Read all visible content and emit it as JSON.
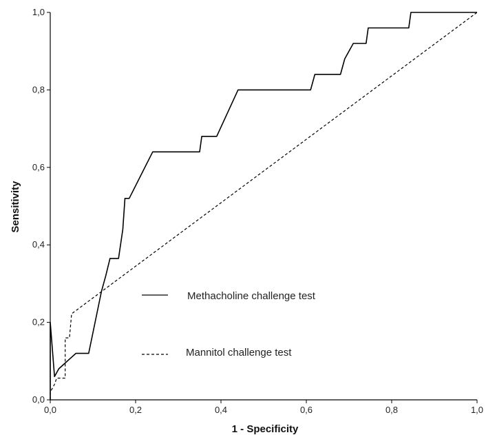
{
  "chart_data": {
    "type": "line",
    "title": "",
    "xlabel": "1 - Specificity",
    "ylabel": "Sensitivity",
    "xlim": [
      0,
      1
    ],
    "ylim": [
      0,
      1
    ],
    "x_ticks": [
      "0,0",
      "0,2",
      "0,4",
      "0,6",
      "0,8",
      "1,0"
    ],
    "y_ticks": [
      "0,0",
      "0,2",
      "0,4",
      "0,6",
      "0,8",
      "1,0"
    ],
    "x_tick_values": [
      0,
      0.2,
      0.4,
      0.6,
      0.8,
      1.0
    ],
    "y_tick_values": [
      0,
      0.2,
      0.4,
      0.6,
      0.8,
      1.0
    ],
    "grid": false,
    "legend_position": "center-right",
    "series": [
      {
        "name": "Methacholine challenge test",
        "style": "solid",
        "color": "#000000",
        "points": [
          [
            0,
            0
          ],
          [
            0.0,
            0.2
          ],
          [
            0.01,
            0.06
          ],
          [
            0.02,
            0.08
          ],
          [
            0.03,
            0.09
          ],
          [
            0.05,
            0.11
          ],
          [
            0.06,
            0.12
          ],
          [
            0.09,
            0.12
          ],
          [
            0.12,
            0.28
          ],
          [
            0.13,
            0.32
          ],
          [
            0.14,
            0.365
          ],
          [
            0.16,
            0.365
          ],
          [
            0.17,
            0.44
          ],
          [
            0.175,
            0.52
          ],
          [
            0.185,
            0.52
          ],
          [
            0.24,
            0.64
          ],
          [
            0.35,
            0.64
          ],
          [
            0.355,
            0.68
          ],
          [
            0.39,
            0.68
          ],
          [
            0.44,
            0.8
          ],
          [
            0.61,
            0.8
          ],
          [
            0.62,
            0.84
          ],
          [
            0.68,
            0.84
          ],
          [
            0.69,
            0.88
          ],
          [
            0.71,
            0.92
          ],
          [
            0.74,
            0.92
          ],
          [
            0.745,
            0.96
          ],
          [
            0.84,
            0.96
          ],
          [
            0.845,
            1.0
          ],
          [
            1.0,
            1.0
          ]
        ]
      },
      {
        "name": "Mannitol challenge test",
        "style": "dashed",
        "color": "#000000",
        "points": [
          [
            0,
            0
          ],
          [
            0.0,
            0.02
          ],
          [
            0.01,
            0.04
          ],
          [
            0.015,
            0.056
          ],
          [
            0.035,
            0.056
          ],
          [
            0.035,
            0.16
          ],
          [
            0.045,
            0.16
          ],
          [
            0.05,
            0.222
          ],
          [
            1.0,
            1.0
          ]
        ]
      }
    ]
  },
  "legend": {
    "items": [
      {
        "label": "Methacholine challenge test",
        "style": "solid"
      },
      {
        "label": "Mannitol challenge test",
        "style": "dashed"
      }
    ]
  }
}
